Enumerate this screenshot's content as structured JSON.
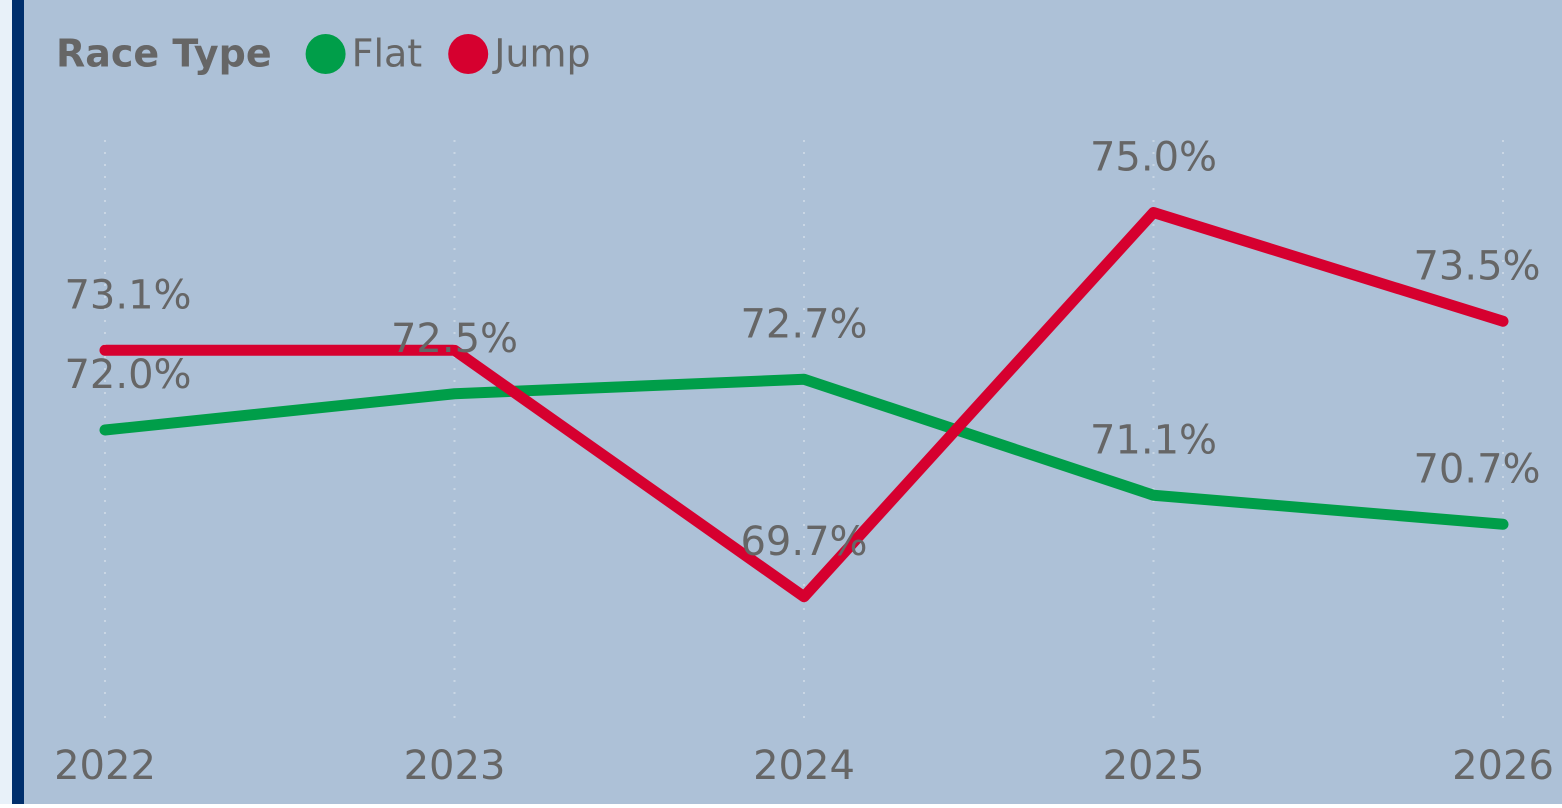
{
  "chart_data": {
    "type": "line",
    "legend_title": "Race Type",
    "categories": [
      "2022",
      "2023",
      "2024",
      "2025",
      "2026"
    ],
    "series": [
      {
        "name": "Flat",
        "color": "#009e49",
        "values": [
          72.0,
          72.5,
          72.7,
          71.1,
          70.7
        ],
        "value_labels": [
          "72.0%",
          "72.5%",
          "72.7%",
          "71.1%",
          "70.7%"
        ]
      },
      {
        "name": "Jump",
        "color": "#d6002f",
        "values": [
          73.1,
          73.1,
          69.7,
          75.0,
          73.5
        ],
        "value_labels": [
          "73.1%",
          null,
          "69.7%",
          "75.0%",
          "73.5%"
        ]
      }
    ],
    "ylim": [
      68,
      76
    ],
    "grid": true,
    "legend": "top-left"
  }
}
